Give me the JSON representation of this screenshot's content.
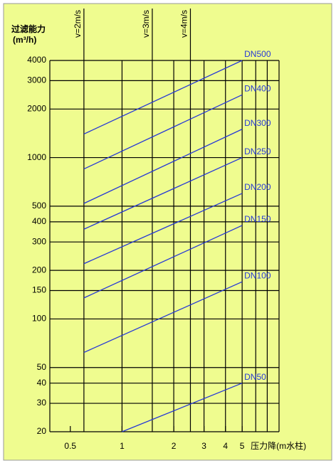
{
  "chart_data": {
    "type": "line",
    "y_label": "过滤能力",
    "y_unit": "(m³/h)",
    "x_label": "压力降(m水柱)",
    "log_x": true,
    "log_y": true,
    "xlim": [
      0.38,
      8.2
    ],
    "ylim": [
      20,
      4000
    ],
    "xticks": [
      0.5,
      1,
      2,
      3,
      4,
      5
    ],
    "yticks": [
      4000,
      3000,
      2000,
      1000,
      500,
      400,
      300,
      200,
      150,
      100,
      50,
      40,
      30,
      20
    ],
    "x_gridlines": [
      6,
      7
    ],
    "reference_lines": [
      {
        "label": "v=2m/s",
        "x": 0.6
      },
      {
        "label": "v=3m/s",
        "x": 1.5
      },
      {
        "label": "v=4m/s",
        "x": 2.5
      }
    ],
    "series": [
      {
        "name": "DN500",
        "color": "#2638d6",
        "x": [
          0.6,
          5
        ],
        "values": [
          1400,
          4000
        ]
      },
      {
        "name": "DN400",
        "color": "#2638d6",
        "x": [
          0.6,
          5
        ],
        "values": [
          850,
          2450
        ]
      },
      {
        "name": "DN300",
        "color": "#2638d6",
        "x": [
          0.6,
          5
        ],
        "values": [
          520,
          1500
        ]
      },
      {
        "name": "DN250",
        "color": "#2638d6",
        "x": [
          0.6,
          5
        ],
        "values": [
          360,
          1000
        ]
      },
      {
        "name": "DN200",
        "color": "#2638d6",
        "x": [
          0.6,
          5
        ],
        "values": [
          220,
          600
        ]
      },
      {
        "name": "DN150",
        "color": "#2638d6",
        "x": [
          0.6,
          5
        ],
        "values": [
          135,
          380
        ]
      },
      {
        "name": "DN100",
        "color": "#2638d6",
        "x": [
          0.6,
          5
        ],
        "values": [
          62,
          170
        ]
      },
      {
        "name": "DN50",
        "color": "#2638d6",
        "x": [
          1,
          5
        ],
        "values": [
          20,
          40
        ]
      }
    ],
    "background": "#effc8f"
  }
}
